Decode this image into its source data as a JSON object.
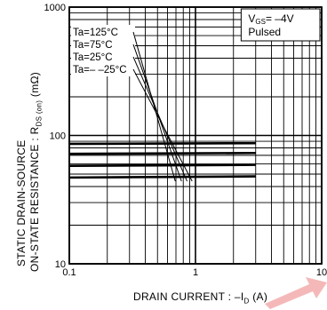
{
  "chart_data": {
    "type": "line",
    "x_scale": "log",
    "y_scale": "log",
    "xlim": [
      0.1,
      10
    ],
    "ylim": [
      10,
      1000
    ],
    "x_ticks": [
      "0.1",
      "1",
      "10"
    ],
    "y_ticks": [
      "1000",
      "100",
      "10"
    ],
    "grid": true,
    "ylabel_line1": "STATIC DRAIN-SOURCE",
    "ylabel_line2_pre": "ON-STATE RESISTANCE : R",
    "ylabel_line2_sub": "DS (on)",
    "ylabel_line2_post": " (mΩ)",
    "xlabel_pre": "DRAIN CURRENT : –I",
    "xlabel_sub": "D",
    "xlabel_post": " (A)",
    "condition_line1_pre": "V",
    "condition_line1_sub": "GS",
    "condition_line1_post": "= –4V",
    "condition_line2": "Pulsed",
    "series": [
      {
        "name": "Ta=125°C",
        "x": [
          0.1,
          3
        ],
        "y": [
          86,
          87
        ]
      },
      {
        "name": "Ta=75°C",
        "x": [
          0.1,
          3
        ],
        "y": [
          72,
          73
        ]
      },
      {
        "name": "Ta=25°C",
        "x": [
          0.1,
          3
        ],
        "y": [
          58,
          59
        ]
      },
      {
        "name": "Ta=– –25°C",
        "x": [
          0.1,
          3
        ],
        "y": [
          47,
          48
        ]
      }
    ]
  }
}
